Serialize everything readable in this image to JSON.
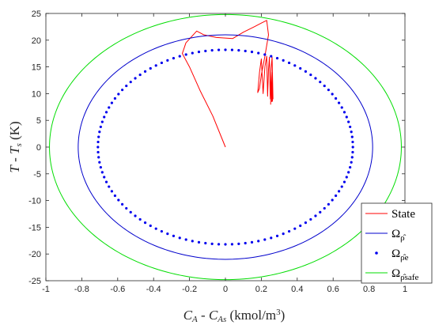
{
  "chart_data": {
    "type": "line",
    "title": "",
    "xlim": [
      -1,
      1
    ],
    "ylim": [
      -25,
      25
    ],
    "x_ticks": [
      -1,
      -0.8,
      -0.6,
      -0.4,
      -0.2,
      0,
      0.2,
      0.4,
      0.6,
      0.8,
      1
    ],
    "y_ticks": [
      -25,
      -20,
      -15,
      -10,
      -5,
      0,
      5,
      10,
      15,
      20,
      25
    ],
    "x_tick_labels": [
      "-1",
      "-0.8",
      "-0.6",
      "-0.4",
      "-0.2",
      "0",
      "0.2",
      "0.4",
      "0.6",
      "0.8",
      "1"
    ],
    "y_tick_labels": [
      "-25",
      "-20",
      "-15",
      "-10",
      "-5",
      "0",
      "5",
      "10",
      "15",
      "20",
      "25"
    ],
    "xlabel": {
      "c": "C",
      "a_sub": "A",
      "dash": " - ",
      "c2": "C",
      "as_sub": "As",
      "unit": " (kmol/m",
      "unit_sup": "3",
      "close": ")"
    },
    "ylabel": {
      "t": "T",
      "dash": " - ",
      "t2": "T",
      "s_sub": "s",
      "unit": " (K)"
    },
    "grid": false,
    "legend_position": "bottom-right",
    "legend": [
      {
        "label": "State",
        "sub": ""
      },
      {
        "label": "Ω",
        "sub": "ρ̂"
      },
      {
        "label": "Ω",
        "sub": "ρ̂e"
      },
      {
        "label": "Ω",
        "sub": "ρ̂safe"
      }
    ],
    "colors": {
      "state": "#ff0000",
      "omega_rho": "#0000cc",
      "omega_rho_e": "#0000ee",
      "omega_rho_safe": "#00dd00",
      "axis": "#262626"
    },
    "series": [
      {
        "name": "State",
        "kind": "line",
        "x": [
          0.0,
          -0.07,
          -0.14,
          -0.2,
          -0.24,
          -0.22,
          -0.16,
          -0.12,
          -0.05,
          0.04,
          0.1,
          0.16,
          0.2,
          0.23,
          0.24,
          0.22,
          0.2,
          0.19,
          0.18,
          0.19,
          0.2,
          0.21,
          0.22,
          0.23,
          0.235,
          0.24,
          0.245,
          0.25,
          0.255,
          0.26,
          0.265,
          0.262,
          0.258,
          0.255,
          0.252,
          0.255,
          0.258,
          0.262,
          0.262
        ],
        "y": [
          0.0,
          5.8,
          10.5,
          15.0,
          17.5,
          19.5,
          21.7,
          21.0,
          20.5,
          20.3,
          21.5,
          22.5,
          23.2,
          23.7,
          21.0,
          17.0,
          13.5,
          11.0,
          10.2,
          14.0,
          16.5,
          10.0,
          15.0,
          17.0,
          9.5,
          14.5,
          16.8,
          9.0,
          14.8,
          16.8,
          9.0,
          14.0,
          8.5,
          14.0,
          8.0,
          13.5,
          9.0,
          12.5,
          8.5
        ]
      },
      {
        "name": "Ω",
        "kind": "ellipse-line",
        "center": [
          0.0,
          0.0
        ],
        "radius_x": 0.82,
        "radius_y": 21.0
      },
      {
        "name": "Ω",
        "kind": "ellipse-dots",
        "center": [
          0.0,
          0.0
        ],
        "radius_x": 0.71,
        "radius_y": 18.2,
        "dot_count": 120
      },
      {
        "name": "Ω",
        "kind": "ellipse-line",
        "center": [
          0.0,
          0.0
        ],
        "radius_x": 0.98,
        "radius_y": 24.8
      }
    ]
  }
}
